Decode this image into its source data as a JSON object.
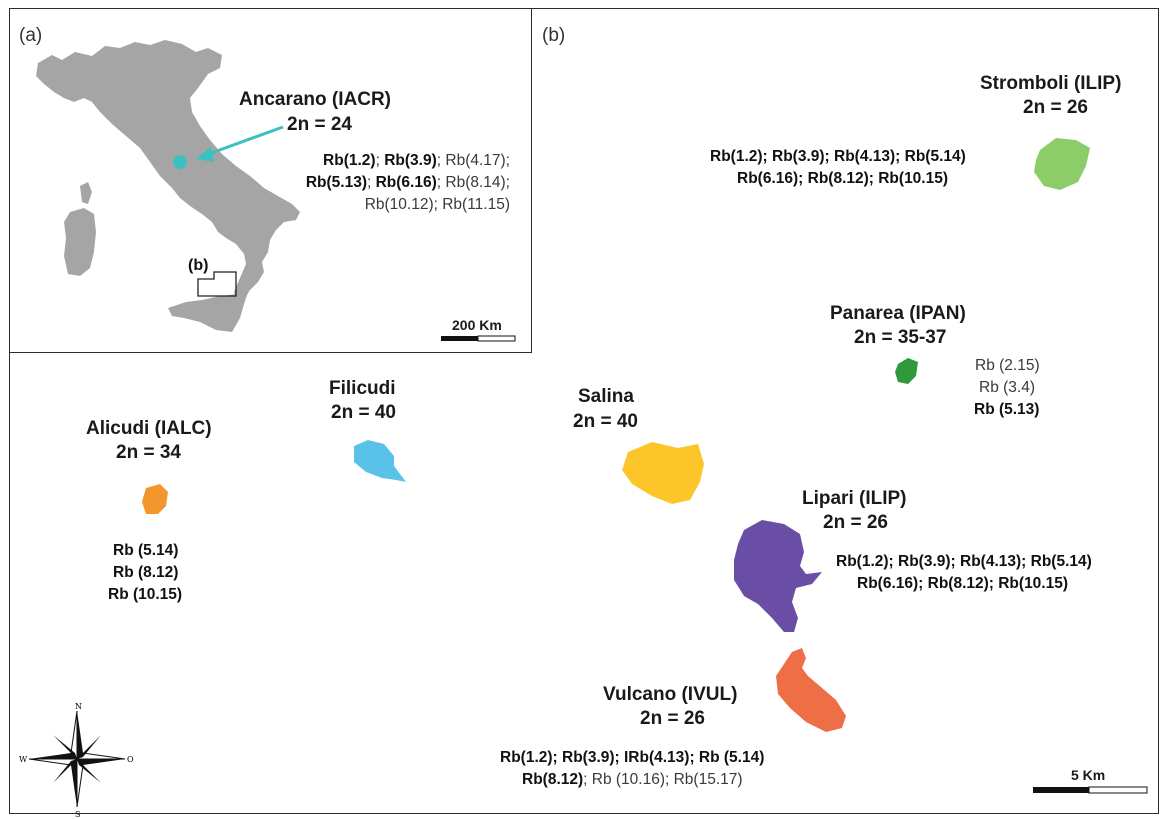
{
  "panels": {
    "a": "(a)",
    "b": "(b)",
    "inset_marker": "(b)"
  },
  "ancarano": {
    "title": "Ancarano (IACR)",
    "chromosomes": "2n = 24",
    "rb_line1": [
      {
        "t": "Rb(1.2)",
        "bold": true
      },
      {
        "t": "; ",
        "bold": false
      },
      {
        "t": "Rb(3.9)",
        "bold": true
      },
      {
        "t": "; Rb(4.17);",
        "bold": false
      }
    ],
    "rb_line2": [
      {
        "t": "Rb(5.13)",
        "bold": true
      },
      {
        "t": "; ",
        "bold": false
      },
      {
        "t": "Rb(6.16)",
        "bold": true
      },
      {
        "t": "; Rb(8.14);",
        "bold": false
      }
    ],
    "rb_line3": [
      {
        "t": "Rb(10.12); Rb(11.15)",
        "bold": false
      }
    ],
    "marker_color": "#3cc0c0"
  },
  "inset_scale": "200 Km",
  "islands": {
    "stromboli": {
      "title": "Stromboli (ILIP)",
      "chromosomes": "2n = 26",
      "color": "#8ccd6a",
      "rb_line1": [
        {
          "t": "Rb(1.2); Rb(3.9); Rb(4.13); Rb(5.14)",
          "bold": true
        }
      ],
      "rb_line2": [
        {
          "t": "Rb(6.16); Rb(8.12); Rb(10.15)",
          "bold": true
        }
      ]
    },
    "panarea": {
      "title": "Panarea (IPAN)",
      "chromosomes": "2n = 35-37",
      "color": "#2e9a3c",
      "rb_line1": [
        {
          "t": "Rb (2.15)",
          "bold": false
        }
      ],
      "rb_line2": [
        {
          "t": "Rb (3.4)",
          "bold": false
        }
      ],
      "rb_line3": [
        {
          "t": "Rb (5.13)",
          "bold": true
        }
      ]
    },
    "salina": {
      "title": "Salina",
      "chromosomes": "2n = 40",
      "color": "#fcc52a"
    },
    "filicudi": {
      "title": "Filicudi",
      "chromosomes": "2n = 40",
      "color": "#5ac2e8"
    },
    "alicudi": {
      "title": "Alicudi (IALC)",
      "chromosomes": "2n = 34",
      "color": "#f3962e",
      "rb_line1": [
        {
          "t": "Rb (5.14)",
          "bold": true
        }
      ],
      "rb_line2": [
        {
          "t": "Rb (8.12)",
          "bold": true
        }
      ],
      "rb_line3": [
        {
          "t": "Rb (10.15)",
          "bold": true
        }
      ]
    },
    "lipari": {
      "title": "Lipari (ILIP)",
      "chromosomes": "2n = 26",
      "color": "#6a4ea6",
      "rb_line1": [
        {
          "t": "Rb(1.2); Rb(3.9); Rb(4.13); Rb(5.14)",
          "bold": true
        }
      ],
      "rb_line2": [
        {
          "t": "Rb(6.16); Rb(8.12); Rb(10.15)",
          "bold": true
        }
      ]
    },
    "vulcano": {
      "title": "Vulcano (IVUL)",
      "chromosomes": "2n = 26",
      "color": "#ee6e46",
      "rb_line1": [
        {
          "t": "Rb(1.2); Rb(3.9); IRb(4.13); Rb (5.14)",
          "bold": true
        }
      ],
      "rb_line2": [
        {
          "t": "Rb(8.12)",
          "bold": true
        },
        {
          "t": "; Rb (10.16); Rb(15.17)",
          "bold": false
        }
      ]
    }
  },
  "main_scale": "5 Km",
  "compass": {
    "n": "N",
    "s": "S",
    "w": "W",
    "e": "O"
  },
  "colors": {
    "land": "#a5a5a5",
    "frame": "#2b2b2b"
  }
}
